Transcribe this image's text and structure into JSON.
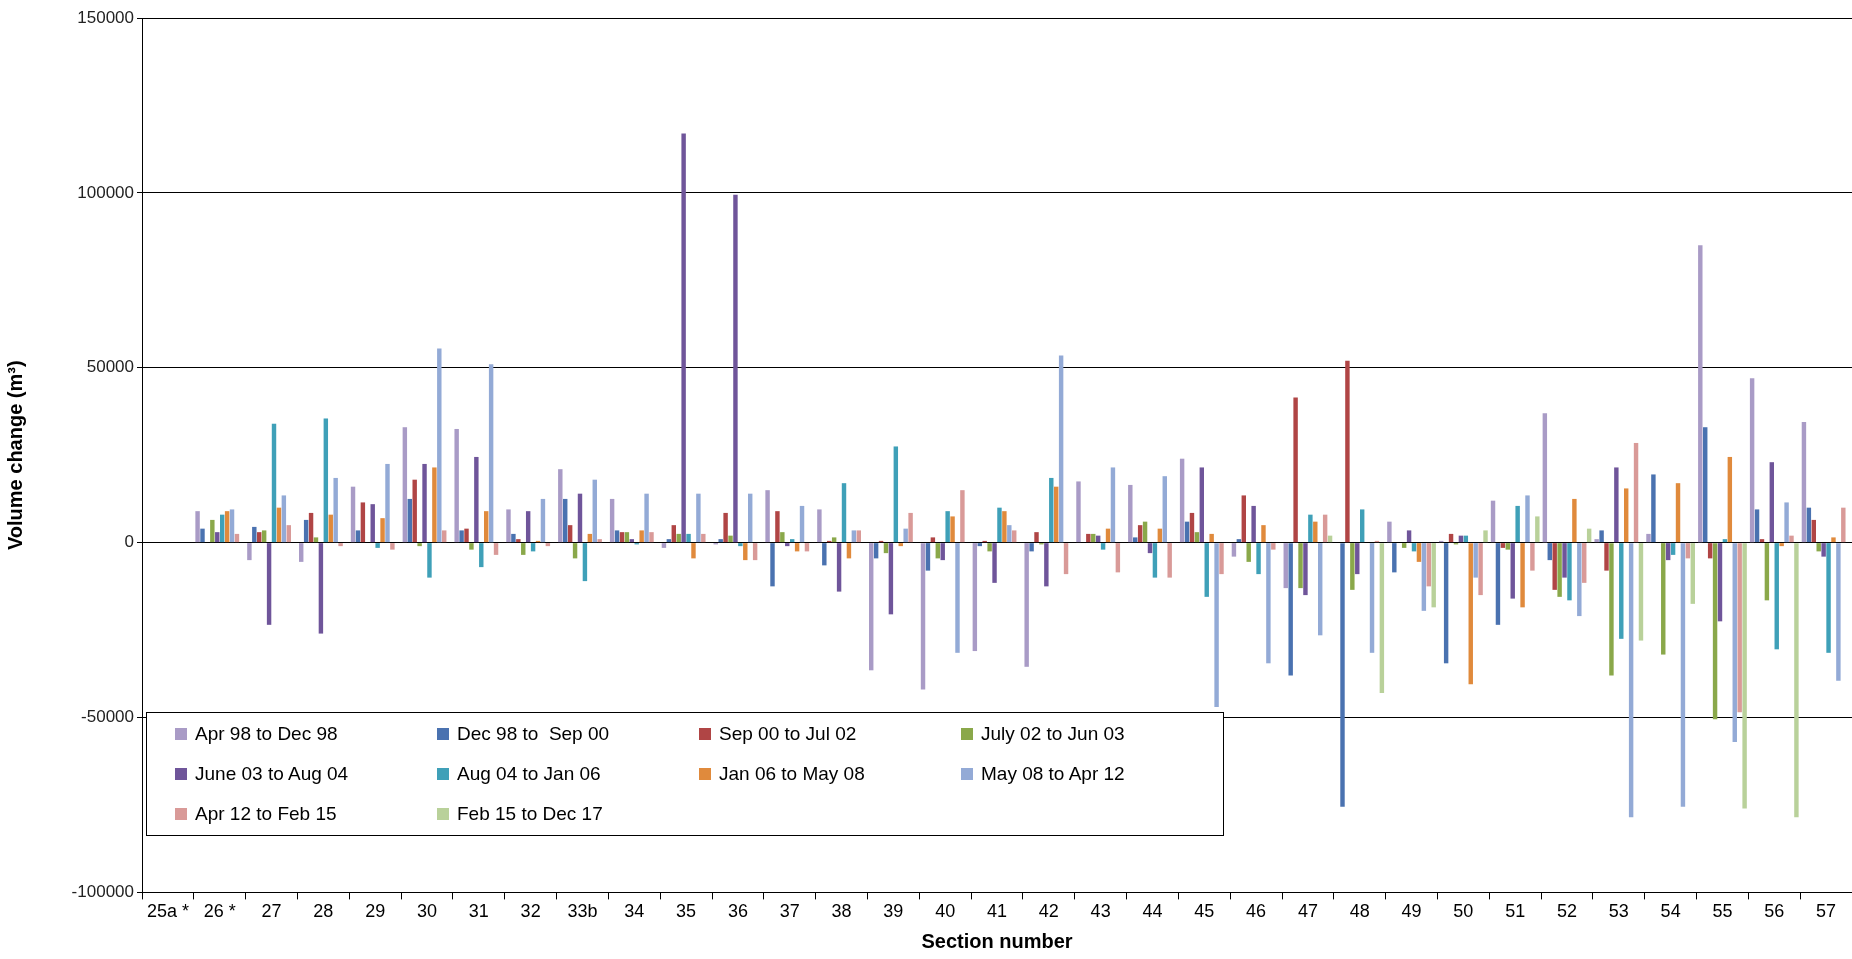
{
  "chart_data": {
    "type": "bar",
    "xlabel": "Section number",
    "ylabel": "Volume change (m³)",
    "categories": [
      "25a *",
      "26 *",
      "27",
      "28",
      "29",
      "30",
      "31",
      "32",
      "33b",
      "34",
      "35",
      "36",
      "37",
      "38",
      "39",
      "40",
      "41",
      "42",
      "43",
      "44",
      "45",
      "46",
      "47",
      "48",
      "49",
      "50",
      "51",
      "52",
      "53",
      "54",
      "55",
      "56",
      "57"
    ],
    "series": [
      {
        "name": "Apr 98 to Dec 98",
        "color": "#a99bc6",
        "values": [
          null,
          9000,
          -5000,
          -5500,
          16000,
          33000,
          32500,
          9500,
          21000,
          12500,
          -1500,
          -500,
          15000,
          9500,
          -36500,
          -42000,
          -31000,
          -35500,
          17500,
          16500,
          24000,
          -4000,
          -13000,
          null,
          6000,
          500,
          12000,
          37000,
          1000,
          2500,
          85000,
          47000,
          34500
        ]
      },
      {
        "name": "Dec 98 to  Sep 00",
        "color": "#4a72b0",
        "values": [
          null,
          4000,
          4500,
          6500,
          3500,
          12500,
          3500,
          2500,
          12500,
          3500,
          1000,
          1000,
          -12500,
          -6500,
          -4500,
          -8000,
          -1000,
          -2500,
          null,
          1500,
          6000,
          1000,
          -38000,
          -75500,
          -8500,
          -34500,
          -23500,
          -5000,
          3500,
          19500,
          33000,
          9500,
          10000
        ]
      },
      {
        "name": "Sep 00 to Jul 02",
        "color": "#b04545",
        "values": [
          null,
          null,
          3000,
          8500,
          11500,
          18000,
          4000,
          1000,
          5000,
          3000,
          5000,
          8500,
          9000,
          500,
          500,
          1500,
          500,
          3000,
          2500,
          5000,
          8500,
          13500,
          41500,
          52000,
          null,
          2500,
          -1500,
          -13500,
          -8000,
          null,
          -4500,
          1000,
          6500
        ]
      },
      {
        "name": "July 02 to Jun 03",
        "color": "#8aa84a",
        "values": [
          null,
          6500,
          3500,
          1500,
          null,
          -1000,
          -2000,
          -3500,
          -4500,
          3000,
          2500,
          2000,
          3000,
          1500,
          -3000,
          -4500,
          -2500,
          -500,
          2500,
          6000,
          3000,
          -5500,
          -13000,
          -13500,
          -1500,
          -500,
          -2000,
          -15500,
          -38000,
          -32000,
          -50500,
          -16500,
          -2500
        ]
      },
      {
        "name": "June 03 to Aug 04",
        "color": "#6f559a",
        "values": [
          null,
          3000,
          -23500,
          -26000,
          11000,
          22500,
          24500,
          9000,
          14000,
          1000,
          117000,
          99500,
          -1000,
          -14000,
          -20500,
          -5000,
          -11500,
          -12500,
          2000,
          -3000,
          21500,
          10500,
          -15000,
          -9000,
          3500,
          2000,
          -16000,
          -10000,
          21500,
          -5000,
          -22500,
          23000,
          -4000
        ]
      },
      {
        "name": "Aug 04 to Jan 06",
        "color": "#3fa0b8",
        "values": [
          null,
          8000,
          34000,
          35500,
          -1500,
          -10000,
          -7000,
          -2500,
          -11000,
          -500,
          2500,
          -1000,
          1000,
          17000,
          27500,
          9000,
          10000,
          18500,
          -2000,
          -10000,
          -15500,
          -9000,
          8000,
          9500,
          -2500,
          2000,
          10500,
          -16500,
          -27500,
          -3500,
          1000,
          -30500,
          -31500
        ]
      },
      {
        "name": "Jan 06 to May 08",
        "color": "#e08a3c",
        "values": [
          null,
          9000,
          10000,
          8000,
          7000,
          21500,
          9000,
          500,
          2500,
          3500,
          -4500,
          -5000,
          -2500,
          -4500,
          -1000,
          7500,
          9000,
          16000,
          4000,
          4000,
          2500,
          5000,
          6000,
          null,
          -5500,
          -40500,
          -18500,
          12500,
          15500,
          17000,
          24500,
          -1000,
          1500
        ]
      },
      {
        "name": "May 08 to Apr 12",
        "color": "#93aad6",
        "values": [
          null,
          9500,
          13500,
          18500,
          22500,
          55500,
          51000,
          12500,
          18000,
          14000,
          14000,
          14000,
          10500,
          3500,
          4000,
          -31500,
          5000,
          53500,
          21500,
          19000,
          -47000,
          -34500,
          -26500,
          -31500,
          -19500,
          -10000,
          13500,
          -21000,
          -78500,
          -75500,
          -57000,
          11500,
          -39500
        ]
      },
      {
        "name": "Apr 12 to Feb 15",
        "color": "#d99a98",
        "values": [
          null,
          2500,
          5000,
          -1000,
          -2000,
          3500,
          -3500,
          -1000,
          1000,
          3000,
          2500,
          -5000,
          -2500,
          3500,
          8500,
          15000,
          3500,
          -9000,
          -8500,
          -10000,
          -9000,
          -2000,
          8000,
          500,
          -12500,
          -15000,
          -8000,
          -11500,
          28500,
          -4500,
          -48500,
          2000,
          10000
        ]
      },
      {
        "name": "Feb 15 to Dec 17",
        "color": "#b9d19a",
        "values": [
          null,
          null,
          null,
          null,
          null,
          null,
          null,
          null,
          null,
          null,
          null,
          null,
          null,
          null,
          null,
          null,
          null,
          null,
          null,
          null,
          null,
          null,
          2000,
          -43000,
          -18500,
          3500,
          7500,
          4000,
          -28000,
          -17500,
          -76000,
          -78500,
          null
        ]
      }
    ],
    "ylim": [
      -100000,
      150000
    ],
    "yticks": [
      -100000,
      -50000,
      0,
      50000,
      100000,
      150000
    ],
    "grid": "y",
    "legend": "bottom left"
  }
}
